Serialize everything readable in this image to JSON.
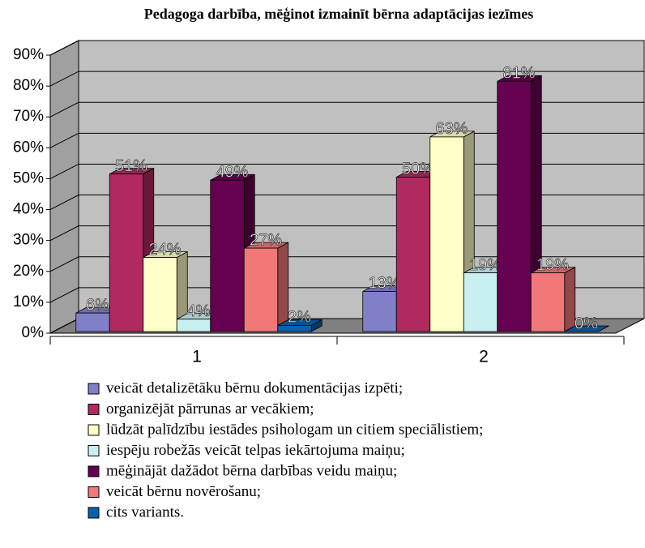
{
  "chart_data": {
    "type": "bar3d",
    "title": "Pedagoga darbība, mēģinot izmainīt bērna adaptācijas iezīmes",
    "categories": [
      "1",
      "2"
    ],
    "series": [
      {
        "name": "veicāt detalizētāku bērnu dokumentācijas izpēti;",
        "color": "#8080c8",
        "values": [
          6,
          13
        ],
        "value_labels": [
          "6%",
          "13%"
        ]
      },
      {
        "name": "organizējāt pārrunas ar vecākiem;",
        "color": "#b02a60",
        "values": [
          51,
          50
        ],
        "value_labels": [
          "51%",
          "50%"
        ]
      },
      {
        "name": "lūdzāt palīdzību iestādes psihologam un citiem speciālistiem;",
        "color": "#ffffc8",
        "values": [
          24,
          63
        ],
        "value_labels": [
          "24%",
          "63%"
        ]
      },
      {
        "name": "iespēju robežās veicāt telpas iekārtojuma maiņu;",
        "color": "#c8f0f0",
        "values": [
          4,
          19
        ],
        "value_labels": [
          "4%",
          "19%"
        ]
      },
      {
        "name": "mēģinājāt dažādot bērna darbības veidu maiņu;",
        "color": "#660050",
        "values": [
          49,
          81
        ],
        "value_labels": [
          "49%",
          "81%"
        ]
      },
      {
        "name": "veicāt bērnu novērošanu;",
        "color": "#f07878",
        "values": [
          27,
          19
        ],
        "value_labels": [
          "27%",
          "19%"
        ]
      },
      {
        "name": "cits variants.",
        "color": "#0860b0",
        "values": [
          2,
          0
        ],
        "value_labels": [
          "2%",
          "0%"
        ]
      }
    ],
    "ylim": [
      0,
      90
    ],
    "yticks": [
      {
        "value": 0,
        "label": "0%"
      },
      {
        "value": 10,
        "label": "10%"
      },
      {
        "value": 20,
        "label": "20%"
      },
      {
        "value": 30,
        "label": "30%"
      },
      {
        "value": 40,
        "label": "40%"
      },
      {
        "value": 50,
        "label": "50%"
      },
      {
        "value": 60,
        "label": "60%"
      },
      {
        "value": 70,
        "label": "70%"
      },
      {
        "value": 80,
        "label": "80%"
      },
      {
        "value": 90,
        "label": "90%"
      }
    ],
    "grid": true
  }
}
